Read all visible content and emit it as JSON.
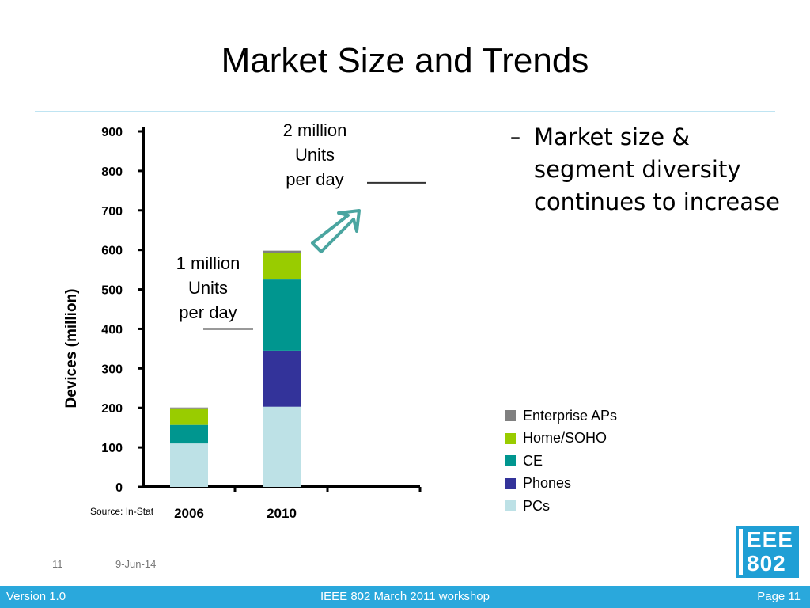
{
  "slide": {
    "title": "Market Size and Trends",
    "bullet": "Market size & segment diversity continues to increase",
    "bullet_marker": "–",
    "slide_number": "11",
    "date": "9-Jun-14",
    "logo_line1": "EEE",
    "logo_line2": "802",
    "footer_left": "Version 1.0",
    "footer_center": "IEEE 802 March 2011 workshop",
    "footer_right": "Page 11"
  },
  "chart_data": {
    "type": "bar",
    "stacked": true,
    "categories": [
      "2006",
      "2010"
    ],
    "series": [
      {
        "name": "PCs",
        "values": [
          110,
          203
        ],
        "color": "#bde1e6"
      },
      {
        "name": "Phones",
        "values": [
          0,
          142
        ],
        "color": "#33339a"
      },
      {
        "name": "CE",
        "values": [
          47,
          180
        ],
        "color": "#00968f"
      },
      {
        "name": "Home/SOHO",
        "values": [
          42,
          67
        ],
        "color": "#99cc00"
      },
      {
        "name": "Enterprise APs",
        "values": [
          2,
          6
        ],
        "color": "#808080"
      }
    ],
    "ylabel": "Devices (million)",
    "ylim": [
      0,
      900
    ],
    "yticks": [
      "0",
      "100",
      "200",
      "300",
      "400",
      "500",
      "600",
      "700",
      "800",
      "900"
    ],
    "source": "Source: In-Stat",
    "legend_position": "right",
    "grid": false,
    "annotations": [
      {
        "lines": [
          "1 million",
          "Units",
          "per day"
        ],
        "value": 400
      },
      {
        "lines": [
          "2 million",
          "Units",
          "per day"
        ],
        "value": 770
      }
    ]
  }
}
